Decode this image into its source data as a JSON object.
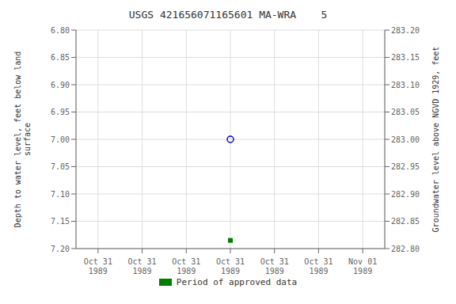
{
  "chart_data": {
    "type": "scatter",
    "title": "USGS 421656071165601 MA-WRA    5",
    "y_label": "Depth to water level, feet below land\nsurface",
    "y2_label": "Groundwater level above NGVD 1929, feet",
    "categories": [
      "Oct 31\n1989",
      "Oct 31\n1989",
      "Oct 31\n1989",
      "Oct 31\n1989",
      "Oct 31\n1989",
      "Oct 31\n1989",
      "Nov 01\n1989"
    ],
    "series": [
      {
        "color": "#0000cc",
        "marker": "circle",
        "values": [
          null,
          null,
          null,
          7.0,
          null,
          null,
          null
        ]
      },
      {
        "name": "Period of approved data",
        "color": "#008000",
        "marker": "square",
        "values": [
          null,
          null,
          null,
          7.185,
          null,
          null,
          null
        ]
      }
    ],
    "ylim": [
      7.2,
      6.8
    ],
    "yticks": [
      {
        "value": 6.8,
        "label": "6.80"
      },
      6.85,
      {
        "value": 6.9,
        "label": "6.90"
      },
      6.95,
      {
        "value": 7.0,
        "label": "7.00"
      },
      7.05,
      {
        "value": 7.1,
        "label": "7.10"
      },
      7.15,
      {
        "value": 7.2,
        "label": "7.20"
      }
    ],
    "y2lim": [
      282.8,
      283.2
    ],
    "y2ticks": [
      {
        "value": 283.2,
        "label": "283.20"
      },
      283.15,
      {
        "value": 283.1,
        "label": "283.10"
      },
      283.05,
      {
        "value": 283.0,
        "label": "283.00"
      },
      282.95,
      {
        "value": 282.9,
        "label": "282.90"
      },
      282.85,
      {
        "value": 282.8,
        "label": "282.80"
      }
    ],
    "grid": true,
    "legend": "bottom"
  }
}
